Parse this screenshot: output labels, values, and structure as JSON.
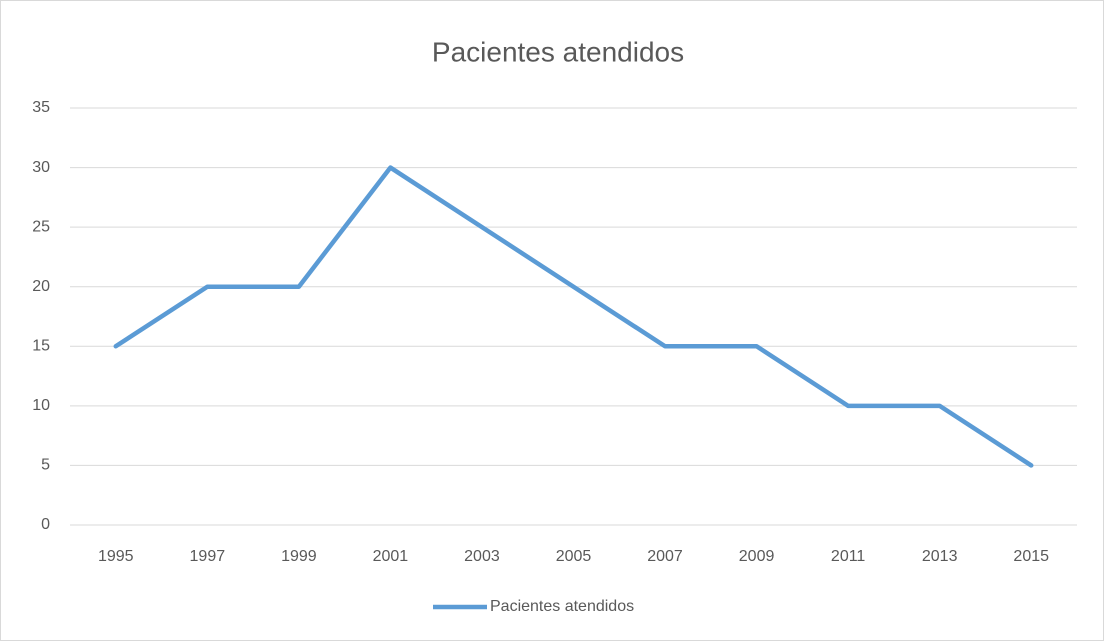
{
  "chart_data": {
    "type": "line",
    "title": "Pacientes atendidos",
    "categories": [
      "1995",
      "1997",
      "1999",
      "2001",
      "2003",
      "2005",
      "2007",
      "2009",
      "2011",
      "2013",
      "2015"
    ],
    "series": [
      {
        "name": "Pacientes atendidos",
        "color": "#5b9bd5",
        "values": [
          15,
          20,
          20,
          30,
          25,
          20,
          15,
          15,
          10,
          10,
          5
        ]
      }
    ],
    "ylim": [
      0,
      35
    ],
    "yticks": [
      0,
      5,
      10,
      15,
      20,
      25,
      30,
      35
    ],
    "grid": true,
    "legend": "bottom"
  }
}
